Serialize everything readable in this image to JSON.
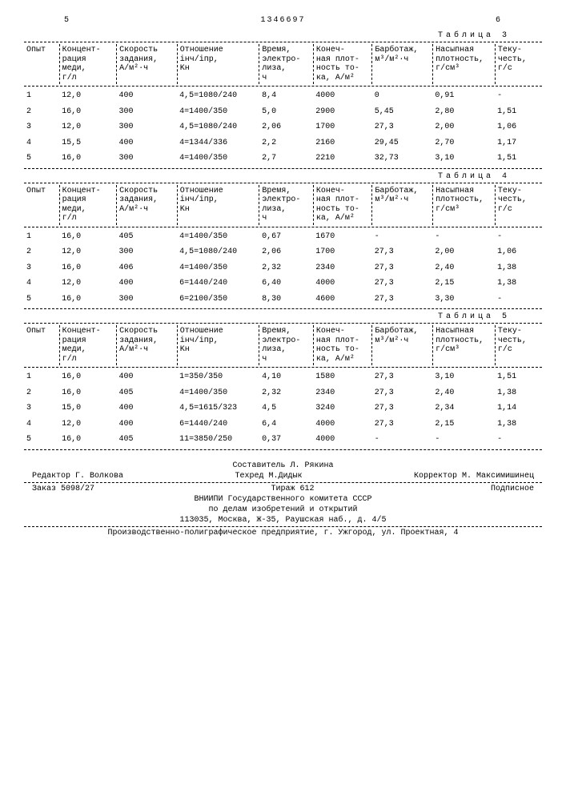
{
  "header": {
    "leftNum": "5",
    "docNum": "1346697",
    "rightNum": "6"
  },
  "captions": {
    "t3": "Таблица 3",
    "t4": "Таблица 4",
    "t5": "Таблица 5"
  },
  "columns": [
    "Опыт",
    "Концент-\nрация\nмеди,\nг/л",
    "Скорость\nзадания,\nА/м²·ч",
    "Отношение\niнч/iпр,\nKн",
    "Время,\nэлектро-\nлиза,\nч",
    "Конеч-\nная плот-\nность то-\nка, А/м²",
    "Барботаж,\nм³/м²·ч",
    "Насыпная\nплотность,\nг/см³",
    "Теку-\nчесть,\nг/с"
  ],
  "table3": [
    [
      "1",
      "12,0",
      "400",
      "4,5=1080/240",
      "8,4",
      "4000",
      "0",
      "0,91",
      "-"
    ],
    [
      "2",
      "16,0",
      "300",
      "4=1400/350",
      "5,0",
      "2900",
      "5,45",
      "2,80",
      "1,51"
    ],
    [
      "3",
      "12,0",
      "300",
      "4,5=1080/240",
      "2,06",
      "1700",
      "27,3",
      "2,00",
      "1,06"
    ],
    [
      "4",
      "15,5",
      "400",
      "4=1344/336",
      "2,2",
      "2160",
      "29,45",
      "2,70",
      "1,17"
    ],
    [
      "5",
      "16,0",
      "300",
      "4=1400/350",
      "2,7",
      "2210",
      "32,73",
      "3,10",
      "1,51"
    ]
  ],
  "table4": [
    [
      "1",
      "16,0",
      "405",
      "4=1400/350",
      "0,67",
      "1670",
      "-",
      "-",
      "-"
    ],
    [
      "2",
      "12,0",
      "300",
      "4,5=1080/240",
      "2,06",
      "1700",
      "27,3",
      "2,00",
      "1,06"
    ],
    [
      "3",
      "16,0",
      "406",
      "4=1400/350",
      "2,32",
      "2340",
      "27,3",
      "2,40",
      "1,38"
    ],
    [
      "4",
      "12,0",
      "400",
      "6=1440/240",
      "6,40",
      "4000",
      "27,3",
      "2,15",
      "1,38"
    ],
    [
      "5",
      "16,0",
      "300",
      "6=2100/350",
      "8,30",
      "4600",
      "27,3",
      "3,30",
      "-"
    ]
  ],
  "table5": [
    [
      "1",
      "16,0",
      "400",
      "1=350/350",
      "4,10",
      "1580",
      "27,3",
      "3,10",
      "1,51"
    ],
    [
      "2",
      "16,0",
      "405",
      "4=1400/350",
      "2,32",
      "2340",
      "27,3",
      "2,40",
      "1,38"
    ],
    [
      "3",
      "15,0",
      "400",
      "4,5=1615/323",
      "4,5",
      "3240",
      "27,3",
      "2,34",
      "1,14"
    ],
    [
      "4",
      "12,0",
      "400",
      "6=1440/240",
      "6,4",
      "4000",
      "27,3",
      "2,15",
      "1,38"
    ],
    [
      "5",
      "16,0",
      "405",
      "11=3850/250",
      "0,37",
      "4000",
      "-",
      "-",
      "-"
    ]
  ],
  "footer": {
    "compiler": "Составитель Л. Рякина",
    "editor": "Редактор Г. Волкова",
    "tech": "Техред М.Дидык",
    "proof": "Корректор М. Максимишинец",
    "order": "Заказ 5098/27",
    "circ": "Тираж 612",
    "sub": "Подписное",
    "org1": "ВНИИПИ Государственного комитета СССР",
    "org2": "по делам изобретений и открытий",
    "addr1": "113035, Москва, Ж-35, Раушская наб., д. 4/5",
    "addr2": "Производственно-полиграфическое предприятие, г. Ужгород, ул. Проектная, 4"
  }
}
